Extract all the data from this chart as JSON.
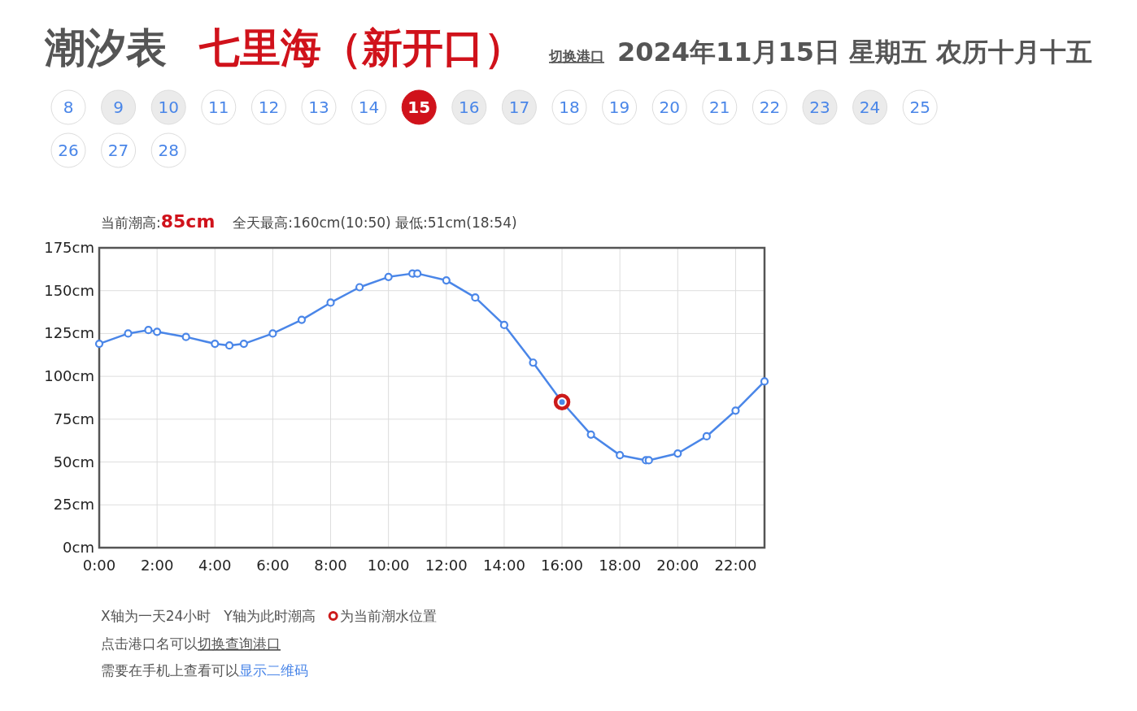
{
  "chart_data": {
    "type": "line",
    "title": "潮汐表",
    "subtitle": "七里海（新开口）",
    "annotations": [
      "切换港口",
      "2024年11月15日 星期五 农历十月十五",
      "当前潮高:",
      "85cm",
      "全天最高:160cm(10:50) 最低:51cm(18:54)",
      "X轴为一天24小时",
      "Y轴为此时潮高",
      "为当前潮水位置",
      "点击港口名可以",
      "切换查询港口",
      "需要在手机上查看可以",
      "显示二维码",
      "8",
      "9",
      "10",
      "11",
      "12",
      "13",
      "14",
      "15",
      "16",
      "17",
      "18",
      "19",
      "20",
      "21",
      "22",
      "23",
      "24",
      "25",
      "26",
      "27",
      "28"
    ],
    "x": [
      0,
      1,
      1.7,
      2,
      3,
      4,
      4.5,
      5,
      6,
      7,
      8,
      9,
      10,
      10.83,
      11,
      12,
      13,
      14,
      15,
      16,
      17,
      18,
      18.9,
      19,
      20,
      21,
      22,
      23
    ],
    "series": [
      {
        "color": "#4a86e8",
        "values": [
          119,
          125,
          127,
          126,
          123,
          119,
          118,
          119,
          125,
          133,
          143,
          152,
          158,
          160,
          160,
          156,
          146,
          130,
          108,
          85,
          66,
          54,
          51,
          51,
          55,
          65,
          80,
          97
        ]
      },
      {
        "type": "scatter",
        "color": "#cc1a1a",
        "x": [
          16
        ],
        "values": [
          85
        ]
      }
    ],
    "marker": "circle",
    "xlim": [
      0,
      23
    ],
    "xticks": [
      {
        "value": 0,
        "label": "0:00"
      },
      {
        "value": 2,
        "label": "2:00"
      },
      {
        "value": 4,
        "label": "4:00"
      },
      {
        "value": 6,
        "label": "6:00"
      },
      {
        "value": 8,
        "label": "8:00"
      },
      {
        "value": 10,
        "label": "10:00"
      },
      {
        "value": 12,
        "label": "12:00"
      },
      {
        "value": 14,
        "label": "14:00"
      },
      {
        "value": 16,
        "label": "16:00"
      },
      {
        "value": 18,
        "label": "18:00"
      },
      {
        "value": 20,
        "label": "20:00"
      },
      {
        "value": 22,
        "label": "22:00"
      }
    ],
    "ylim": [
      0,
      175
    ],
    "yticks": [
      {
        "value": 0,
        "label": "0cm"
      },
      {
        "value": 25,
        "label": "25cm"
      },
      {
        "value": 50,
        "label": "50cm"
      },
      {
        "value": 75,
        "label": "75cm"
      },
      {
        "value": 100,
        "label": "100cm"
      },
      {
        "value": 125,
        "label": "125cm"
      },
      {
        "value": 150,
        "label": "150cm"
      },
      {
        "value": 175,
        "label": "175cm"
      }
    ],
    "grid": true
  }
}
